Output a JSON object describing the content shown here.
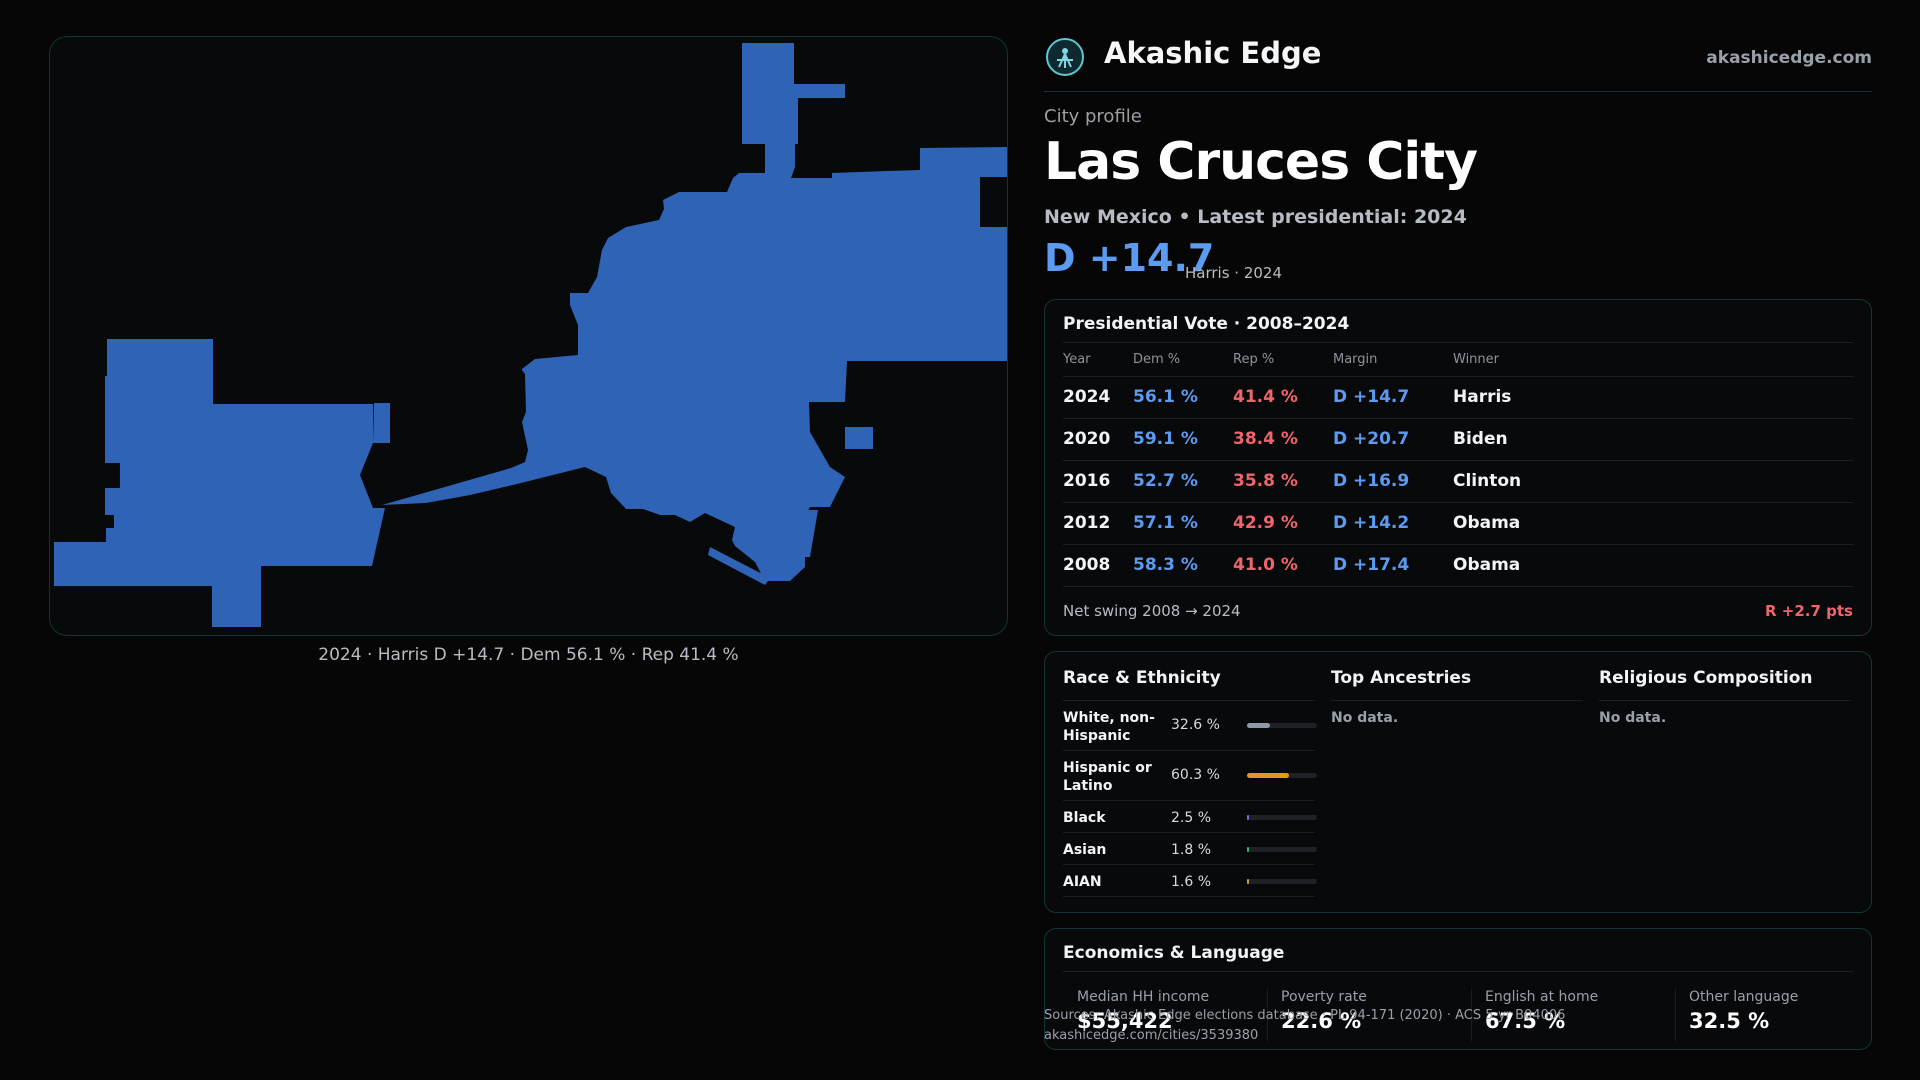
{
  "brand": {
    "name": "Akashic Edge",
    "site": "akashicedge.com"
  },
  "header": {
    "eyebrow": "City profile",
    "city": "Las Cruces City",
    "subline": "New Mexico • Latest presidential: 2024",
    "margin": "D +14.7",
    "margin_note": "Harris · 2024"
  },
  "map": {
    "fill_color": "#2e63b6",
    "caption": "2024 · Harris D +14.7 · Dem 56.1 % · Rep 41.4 %"
  },
  "presidential": {
    "title": "Presidential Vote · 2008–2024",
    "columns": [
      "Year",
      "Dem %",
      "Rep %",
      "Margin",
      "Winner"
    ],
    "rows": [
      {
        "year": "2024",
        "dem": "56.1 %",
        "rep": "41.4 %",
        "margin": "D +14.7",
        "winner": "Harris"
      },
      {
        "year": "2020",
        "dem": "59.1 %",
        "rep": "38.4 %",
        "margin": "D +20.7",
        "winner": "Biden"
      },
      {
        "year": "2016",
        "dem": "52.7 %",
        "rep": "35.8 %",
        "margin": "D +16.9",
        "winner": "Clinton"
      },
      {
        "year": "2012",
        "dem": "57.1 %",
        "rep": "42.9 %",
        "margin": "D +14.2",
        "winner": "Obama"
      },
      {
        "year": "2008",
        "dem": "58.3 %",
        "rep": "41.0 %",
        "margin": "D +17.4",
        "winner": "Obama"
      }
    ],
    "swing_label": "Net swing 2008 → 2024",
    "swing_value": "R +2.7 pts"
  },
  "demographics": {
    "race_title": "Race & Ethnicity",
    "race": [
      {
        "name": "White, non-Hispanic",
        "pct": "32.6 %",
        "share": 0.326,
        "color": "#8f98a6"
      },
      {
        "name": "Hispanic or Latino",
        "pct": "60.3 %",
        "share": 0.603,
        "color": "#e2981f"
      },
      {
        "name": "Black",
        "pct": "2.5 %",
        "share": 0.025,
        "color": "#7d6cd6"
      },
      {
        "name": "Asian",
        "pct": "1.8 %",
        "share": 0.018,
        "color": "#3fb37c"
      },
      {
        "name": "AIAN",
        "pct": "1.6 %",
        "share": 0.016,
        "color": "#c0a060"
      }
    ],
    "ancestries_title": "Top Ancestries",
    "ancestries_empty": "No data.",
    "religion_title": "Religious Composition",
    "religion_empty": "No data."
  },
  "economics": {
    "title": "Economics & Language",
    "stats": [
      {
        "label": "Median HH income",
        "value": "$55,422"
      },
      {
        "label": "Poverty rate",
        "value": "22.6 %"
      },
      {
        "label": "English at home",
        "value": "67.5 %"
      },
      {
        "label": "Other language",
        "value": "32.5 %"
      }
    ]
  },
  "source": {
    "line1": "Sources: Akashic Edge elections database · PL 94-171 (2020) · ACS 5-yr B04006",
    "line2": "akashicedge.com/cities/3539380"
  }
}
